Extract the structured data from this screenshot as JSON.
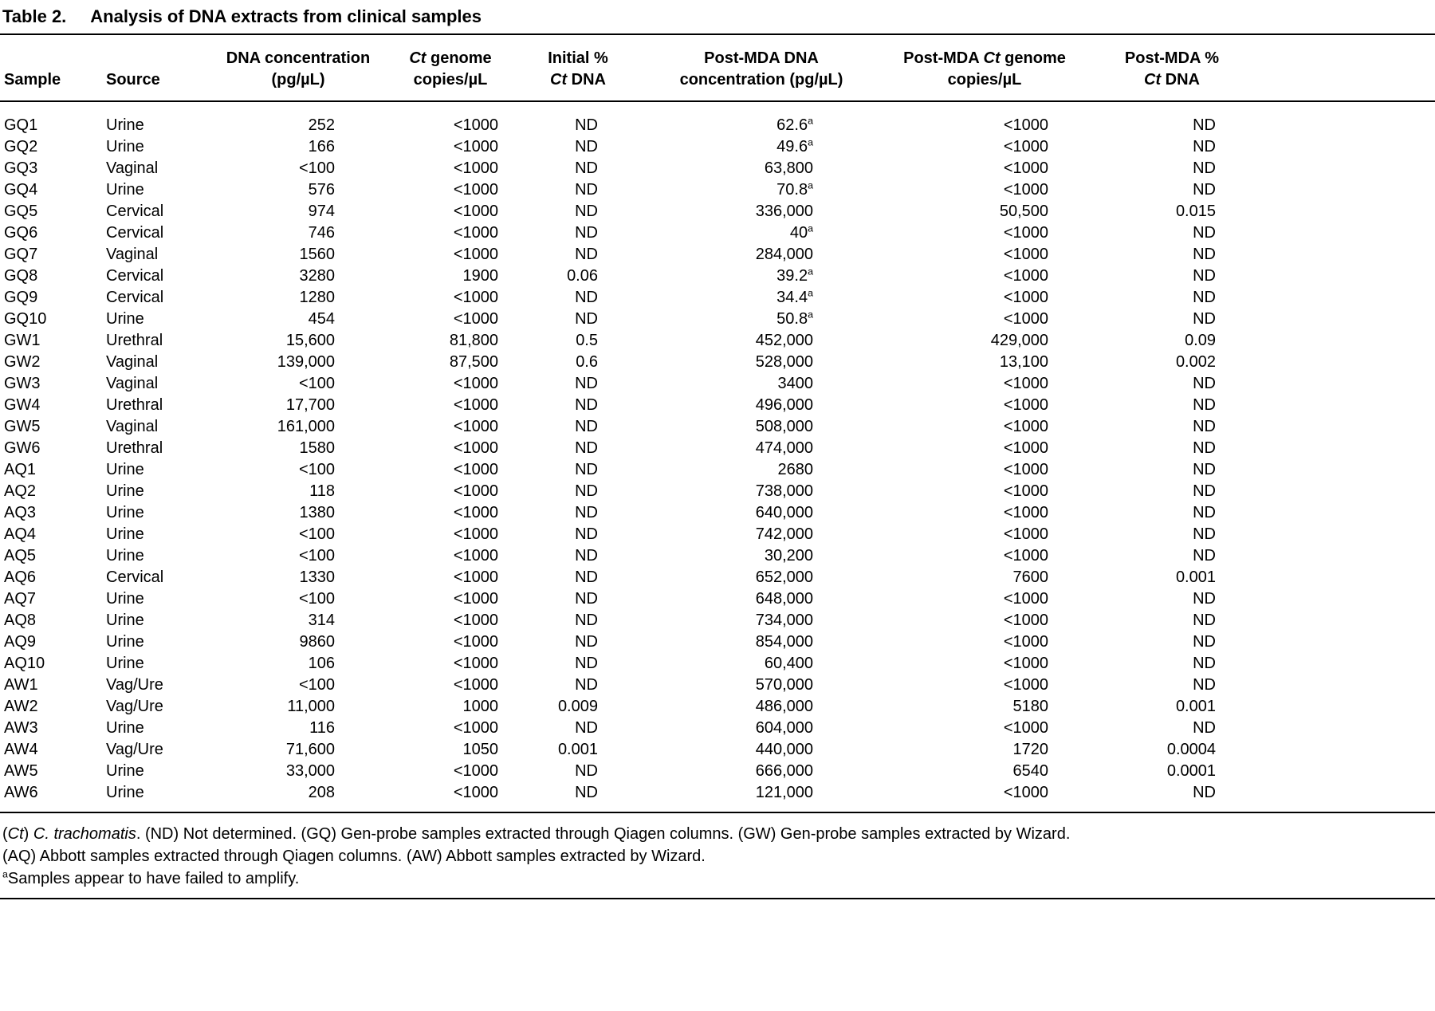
{
  "table": {
    "label": "Table 2.",
    "title": "Analysis of DNA extracts from clinical samples",
    "columns": [
      {
        "id": "sample",
        "lines": [
          "Sample"
        ]
      },
      {
        "id": "source",
        "lines": [
          "Source"
        ]
      },
      {
        "id": "dna_conc",
        "lines": [
          "DNA concentration",
          "(pg/µL)"
        ]
      },
      {
        "id": "ct_copies",
        "lines": [
          "*Ct* genome",
          "copies/µL"
        ]
      },
      {
        "id": "initial_pct",
        "lines": [
          "Initial %",
          "*Ct* DNA"
        ]
      },
      {
        "id": "post_dna_conc",
        "lines": [
          "Post-MDA DNA",
          "concentration (pg/µL)"
        ]
      },
      {
        "id": "post_ct_copies",
        "lines": [
          "Post-MDA *Ct* genome",
          "copies/µL"
        ]
      },
      {
        "id": "post_pct",
        "lines": [
          "Post-MDA %",
          "*Ct* DNA"
        ]
      }
    ],
    "rows": [
      [
        "GQ1",
        "Urine",
        "252",
        "<1000",
        "ND",
        "62.6^a",
        "<1000",
        "ND"
      ],
      [
        "GQ2",
        "Urine",
        "166",
        "<1000",
        "ND",
        "49.6^a",
        "<1000",
        "ND"
      ],
      [
        "GQ3",
        "Vaginal",
        "<100",
        "<1000",
        "ND",
        "63,800",
        "<1000",
        "ND"
      ],
      [
        "GQ4",
        "Urine",
        "576",
        "<1000",
        "ND",
        "70.8^a",
        "<1000",
        "ND"
      ],
      [
        "GQ5",
        "Cervical",
        "974",
        "<1000",
        "ND",
        "336,000",
        "50,500",
        "0.015"
      ],
      [
        "GQ6",
        "Cervical",
        "746",
        "<1000",
        "ND",
        "40^a",
        "<1000",
        "ND"
      ],
      [
        "GQ7",
        "Vaginal",
        "1560",
        "<1000",
        "ND",
        "284,000",
        "<1000",
        "ND"
      ],
      [
        "GQ8",
        "Cervical",
        "3280",
        "1900",
        "0.06",
        "39.2^a",
        "<1000",
        "ND"
      ],
      [
        "GQ9",
        "Cervical",
        "1280",
        "<1000",
        "ND",
        "34.4^a",
        "<1000",
        "ND"
      ],
      [
        "GQ10",
        "Urine",
        "454",
        "<1000",
        "ND",
        "50.8^a",
        "<1000",
        "ND"
      ],
      [
        "GW1",
        "Urethral",
        "15,600",
        "81,800",
        "0.5",
        "452,000",
        "429,000",
        "0.09"
      ],
      [
        "GW2",
        "Vaginal",
        "139,000",
        "87,500",
        "0.6",
        "528,000",
        "13,100",
        "0.002"
      ],
      [
        "GW3",
        "Vaginal",
        "<100",
        "<1000",
        "ND",
        "3400",
        "<1000",
        "ND"
      ],
      [
        "GW4",
        "Urethral",
        "17,700",
        "<1000",
        "ND",
        "496,000",
        "<1000",
        "ND"
      ],
      [
        "GW5",
        "Vaginal",
        "161,000",
        "<1000",
        "ND",
        "508,000",
        "<1000",
        "ND"
      ],
      [
        "GW6",
        "Urethral",
        "1580",
        "<1000",
        "ND",
        "474,000",
        "<1000",
        "ND"
      ],
      [
        "AQ1",
        "Urine",
        "<100",
        "<1000",
        "ND",
        "2680",
        "<1000",
        "ND"
      ],
      [
        "AQ2",
        "Urine",
        "118",
        "<1000",
        "ND",
        "738,000",
        "<1000",
        "ND"
      ],
      [
        "AQ3",
        "Urine",
        "1380",
        "<1000",
        "ND",
        "640,000",
        "<1000",
        "ND"
      ],
      [
        "AQ4",
        "Urine",
        "<100",
        "<1000",
        "ND",
        "742,000",
        "<1000",
        "ND"
      ],
      [
        "AQ5",
        "Urine",
        "<100",
        "<1000",
        "ND",
        "30,200",
        "<1000",
        "ND"
      ],
      [
        "AQ6",
        "Cervical",
        "1330",
        "<1000",
        "ND",
        "652,000",
        "7600",
        "0.001"
      ],
      [
        "AQ7",
        "Urine",
        "<100",
        "<1000",
        "ND",
        "648,000",
        "<1000",
        "ND"
      ],
      [
        "AQ8",
        "Urine",
        "314",
        "<1000",
        "ND",
        "734,000",
        "<1000",
        "ND"
      ],
      [
        "AQ9",
        "Urine",
        "9860",
        "<1000",
        "ND",
        "854,000",
        "<1000",
        "ND"
      ],
      [
        "AQ10",
        "Urine",
        "106",
        "<1000",
        "ND",
        "60,400",
        "<1000",
        "ND"
      ],
      [
        "AW1",
        "Vag/Ure",
        "<100",
        "<1000",
        "ND",
        "570,000",
        "<1000",
        "ND"
      ],
      [
        "AW2",
        "Vag/Ure",
        "11,000",
        "1000",
        "0.009",
        "486,000",
        "5180",
        "0.001"
      ],
      [
        "AW3",
        "Urine",
        "116",
        "<1000",
        "ND",
        "604,000",
        "<1000",
        "ND"
      ],
      [
        "AW4",
        "Vag/Ure",
        "71,600",
        "1050",
        "0.001",
        "440,000",
        "1720",
        "0.0004"
      ],
      [
        "AW5",
        "Urine",
        "33,000",
        "<1000",
        "ND",
        "666,000",
        "6540",
        "0.0001"
      ],
      [
        "AW6",
        "Urine",
        "208",
        "<1000",
        "ND",
        "121,000",
        "<1000",
        "ND"
      ]
    ],
    "footnote_lines": [
      "(*Ct*) *C. trachomatis*. (ND) Not determined. (GQ) Gen-probe samples extracted through Qiagen columns. (GW) Gen-probe samples extracted by Wizard.",
      "(AQ) Abbott samples extracted through Qiagen columns. (AW) Abbott samples extracted by Wizard.",
      "^aSamples appear to have failed to amplify."
    ]
  }
}
